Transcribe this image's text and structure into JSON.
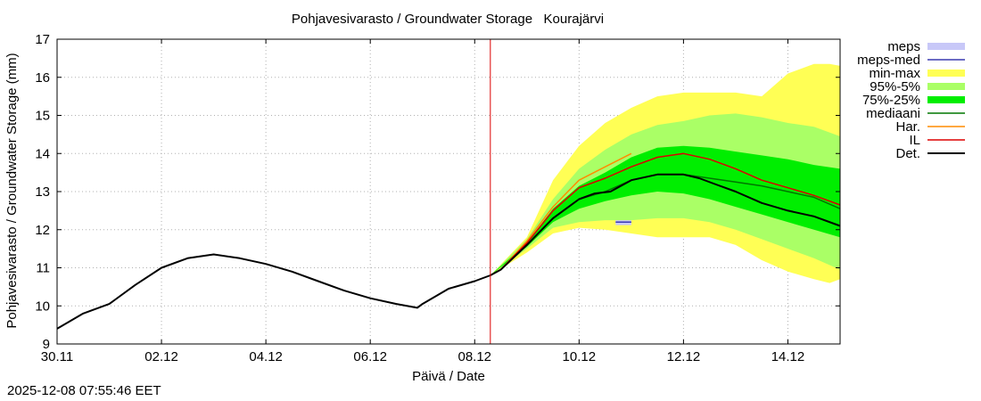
{
  "chart_data": {
    "type": "line",
    "title": "Pohjavesivarasto / Groundwater Storage   Kourajärvi",
    "xlabel": "Päivä / Date",
    "ylabel": "Pohjavesivarasto / Groundwater Storage (mm)",
    "xlim": [
      0,
      15
    ],
    "ylim": [
      9,
      17
    ],
    "x_unit": "days since 30.11",
    "x_ticks": [
      {
        "x": 0,
        "label": "30.11"
      },
      {
        "x": 2,
        "label": "02.12"
      },
      {
        "x": 4,
        "label": "04.12"
      },
      {
        "x": 6,
        "label": "06.12"
      },
      {
        "x": 8,
        "label": "08.12"
      },
      {
        "x": 10,
        "label": "10.12"
      },
      {
        "x": 12,
        "label": "12.12"
      },
      {
        "x": 14,
        "label": "14.12"
      }
    ],
    "y_ticks": [
      9,
      10,
      11,
      12,
      13,
      14,
      15,
      16,
      17
    ],
    "grid": true,
    "forecast_start_x": 8.3,
    "legend": [
      {
        "label": "meps",
        "kind": "band",
        "color": "#c8c8f8"
      },
      {
        "label": "meps-med",
        "kind": "line",
        "color": "#3a3ab0"
      },
      {
        "label": "min-max",
        "kind": "band",
        "color": "#ffff55"
      },
      {
        "label": "95%-5%",
        "kind": "band",
        "color": "#aaff66"
      },
      {
        "label": "75%-25%",
        "kind": "band",
        "color": "#00ee00"
      },
      {
        "label": "mediaani",
        "kind": "line",
        "color": "#007700"
      },
      {
        "label": "Har.",
        "kind": "line",
        "color": "#ff8c00"
      },
      {
        "label": "IL",
        "kind": "line",
        "color": "#dd0000"
      },
      {
        "label": "Det.",
        "kind": "line",
        "color": "#000000"
      }
    ],
    "series": [
      {
        "name": "Det.",
        "color": "#000000",
        "x": [
          0,
          0.5,
          1,
          1.5,
          2,
          2.5,
          3,
          3.5,
          4,
          4.5,
          5,
          5.5,
          6,
          6.5,
          6.9,
          7,
          7.5,
          8,
          8.3,
          8.5,
          9,
          9.5,
          10,
          10.3,
          10.6,
          11,
          11.5,
          12,
          12.3,
          12.6,
          13,
          13.5,
          14,
          14.5,
          15
        ],
        "y": [
          9.4,
          9.8,
          10.05,
          10.55,
          11.0,
          11.25,
          11.35,
          11.25,
          11.1,
          10.9,
          10.65,
          10.4,
          10.2,
          10.05,
          9.95,
          10.05,
          10.45,
          10.65,
          10.8,
          10.95,
          11.6,
          12.3,
          12.8,
          12.95,
          13.0,
          13.3,
          13.45,
          13.45,
          13.35,
          13.2,
          13.0,
          12.7,
          12.5,
          12.35,
          12.1
        ]
      },
      {
        "name": "mediaani",
        "color": "#007700",
        "x": [
          8.3,
          8.5,
          9,
          9.5,
          10,
          10.5,
          11,
          11.5,
          12,
          12.5,
          13,
          13.5,
          14,
          14.5,
          15
        ],
        "y": [
          10.8,
          10.95,
          11.6,
          12.3,
          12.8,
          13.0,
          13.3,
          13.45,
          13.45,
          13.35,
          13.25,
          13.15,
          13.0,
          12.85,
          12.55
        ]
      },
      {
        "name": "IL",
        "color": "#dd0000",
        "x": [
          8.3,
          8.5,
          9,
          9.5,
          10,
          10.5,
          11,
          11.5,
          12,
          12.5,
          13,
          13.5,
          14,
          14.5,
          15
        ],
        "y": [
          10.8,
          10.95,
          11.65,
          12.5,
          13.1,
          13.35,
          13.65,
          13.9,
          14.0,
          13.85,
          13.6,
          13.3,
          13.1,
          12.9,
          12.65
        ]
      },
      {
        "name": "Har.",
        "color": "#ff8c00",
        "x": [
          8.3,
          8.5,
          9,
          9.5,
          10,
          10.5,
          11
        ],
        "y": [
          10.8,
          10.95,
          11.7,
          12.6,
          13.3,
          13.65,
          14.0
        ]
      },
      {
        "name": "meps-med",
        "color": "#3a3ab0",
        "x": [
          10.7,
          11.0
        ],
        "y": [
          12.2,
          12.2
        ]
      }
    ],
    "bands": [
      {
        "name": "min-max",
        "color": "#ffff55",
        "x": [
          8.3,
          9,
          9.5,
          10,
          10.5,
          11,
          11.5,
          12,
          12.5,
          13,
          13.5,
          14,
          14.5,
          14.8,
          15
        ],
        "upper": [
          10.8,
          11.8,
          13.3,
          14.2,
          14.8,
          15.2,
          15.5,
          15.6,
          15.6,
          15.6,
          15.5,
          16.1,
          16.35,
          16.35,
          16.3
        ],
        "lower": [
          10.8,
          11.4,
          11.9,
          12.05,
          12.0,
          11.9,
          11.8,
          11.8,
          11.8,
          11.6,
          11.2,
          10.9,
          10.7,
          10.6,
          10.7
        ]
      },
      {
        "name": "95%-5%",
        "color": "#aaff66",
        "x": [
          8.3,
          9,
          9.5,
          10,
          10.5,
          11,
          11.5,
          12,
          12.5,
          13,
          13.5,
          14,
          14.5,
          15
        ],
        "upper": [
          10.8,
          11.75,
          12.8,
          13.6,
          14.1,
          14.5,
          14.75,
          14.85,
          15.0,
          15.05,
          14.95,
          14.8,
          14.7,
          14.45
        ],
        "lower": [
          10.8,
          11.5,
          12.05,
          12.2,
          12.25,
          12.25,
          12.3,
          12.3,
          12.2,
          12.0,
          11.75,
          11.5,
          11.25,
          10.95
        ]
      },
      {
        "name": "75%-25%",
        "color": "#00ee00",
        "x": [
          8.3,
          9,
          9.5,
          10,
          10.5,
          11,
          11.5,
          12,
          12.5,
          13,
          13.5,
          14,
          14.5,
          15
        ],
        "upper": [
          10.8,
          11.65,
          12.55,
          13.15,
          13.5,
          13.9,
          14.15,
          14.2,
          14.15,
          14.05,
          13.95,
          13.85,
          13.7,
          13.6
        ],
        "lower": [
          10.8,
          11.55,
          12.2,
          12.55,
          12.75,
          12.9,
          13.0,
          12.95,
          12.8,
          12.6,
          12.4,
          12.2,
          12.0,
          11.8
        ]
      },
      {
        "name": "meps",
        "color": "#c8c8f8",
        "x": [
          10.7,
          11.0
        ],
        "upper": [
          12.25,
          12.25
        ],
        "lower": [
          12.12,
          12.12
        ]
      }
    ]
  },
  "footer": {
    "timestamp": "2025-12-08 07:55:46 EET"
  }
}
